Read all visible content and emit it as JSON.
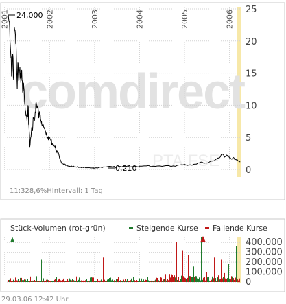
{
  "main_chart": {
    "watermark_brand": "comdirect",
    "watermark_symbol": "PTA.FSE",
    "footer_text": "11:328,6%HIntervall: 1 Tag",
    "label_start": "24,000",
    "label_low": "0,210",
    "highlight_color": "#f7e8a8"
  },
  "volume_chart": {
    "title": "Stück-Volumen (rot-grün)",
    "legend_up": "Steigende Kurse",
    "legend_down": "Fallende Kurse",
    "up_color": "#1f7a2c",
    "down_color": "#c01818"
  },
  "footer": {
    "timestamp": "29.03.06   12:42 Uhr"
  },
  "chart_data": [
    {
      "type": "line",
      "title": "",
      "xlabel": "",
      "ylabel": "",
      "x_tick_labels": [
        "2001",
        "2002",
        "2003",
        "2004",
        "2005",
        "2006"
      ],
      "y_tick_labels": [
        "0",
        "5",
        "10",
        "15",
        "20",
        "25"
      ],
      "ylim": [
        0,
        25
      ],
      "xlim": [
        2001.05,
        2006.25
      ],
      "grid": true,
      "series": [
        {
          "x": [
            2001.08,
            2001.1,
            2001.12,
            2001.14,
            2001.16,
            2001.18,
            2001.2,
            2001.22,
            2001.24,
            2001.26,
            2001.28,
            2001.3,
            2001.32,
            2001.34,
            2001.36,
            2001.38,
            2001.4,
            2001.42,
            2001.44,
            2001.46,
            2001.48,
            2001.5,
            2001.52,
            2001.54,
            2001.56,
            2001.58,
            2001.6,
            2001.62,
            2001.64,
            2001.66,
            2001.68,
            2001.7,
            2001.72,
            2001.74,
            2001.76,
            2001.78,
            2001.8,
            2001.82,
            2001.84,
            2001.86,
            2001.88,
            2001.9,
            2001.92,
            2001.94,
            2001.96,
            2001.98,
            2002.0,
            2002.03,
            2002.06,
            2002.09,
            2002.12,
            2002.15,
            2002.18,
            2002.21,
            2002.24,
            2002.28,
            2002.32,
            2002.36,
            2002.4,
            2002.45,
            2002.5,
            2002.55,
            2002.6,
            2002.65,
            2002.7,
            2002.75,
            2002.8,
            2002.85,
            2002.9,
            2002.95,
            2003.0,
            2003.1,
            2003.2,
            2003.3,
            2003.4,
            2003.5,
            2003.6,
            2003.7,
            2003.8,
            2003.9,
            2004.0,
            2004.15,
            2004.3,
            2004.45,
            2004.6,
            2004.75,
            2004.9,
            2005.0,
            2005.1,
            2005.2,
            2005.3,
            2005.4,
            2005.5,
            2005.6,
            2005.7,
            2005.75,
            2005.8,
            2005.85,
            2005.9,
            2005.95,
            2006.0,
            2006.05,
            2006.1,
            2006.15,
            2006.2,
            2006.24
          ],
          "y": [
            24.0,
            23.0,
            20.0,
            17.5,
            14.5,
            18.0,
            14.0,
            22.0,
            21.0,
            18.0,
            12.5,
            16.5,
            14.0,
            16.0,
            13.5,
            15.5,
            12.0,
            13.5,
            11.0,
            9.0,
            8.5,
            7.5,
            10.0,
            7.0,
            3.5,
            5.0,
            6.5,
            6.0,
            8.0,
            7.5,
            9.0,
            10.5,
            9.5,
            10.0,
            8.0,
            9.0,
            7.5,
            7.5,
            7.0,
            7.0,
            6.5,
            6.0,
            5.5,
            5.2,
            5.0,
            4.8,
            5.0,
            4.5,
            4.0,
            3.8,
            3.5,
            3.0,
            2.6,
            2.2,
            1.5,
            1.0,
            0.8,
            0.6,
            0.55,
            0.5,
            0.45,
            0.4,
            0.35,
            0.3,
            0.3,
            0.28,
            0.25,
            0.25,
            0.22,
            0.21,
            0.21,
            0.3,
            0.4,
            0.45,
            0.4,
            0.35,
            0.4,
            0.45,
            0.4,
            0.45,
            0.5,
            0.55,
            0.5,
            0.55,
            0.6,
            0.55,
            0.7,
            0.8,
            0.7,
            0.8,
            1.0,
            1.1,
            1.0,
            1.3,
            1.6,
            1.8,
            2.0,
            2.4,
            2.0,
            2.2,
            1.8,
            1.6,
            1.8,
            1.5,
            1.3,
            1.2
          ]
        }
      ]
    },
    {
      "type": "bar",
      "title": "Stück-Volumen (rot-grün)",
      "y_tick_labels": [
        "0",
        "100.000",
        "200.000",
        "300.000",
        "400.000"
      ],
      "ylim": [
        0,
        450000
      ],
      "xlim": [
        2001.05,
        2006.25
      ],
      "series": [
        {
          "name": "Steigende Kurse",
          "color": "#1f7a2c"
        },
        {
          "name": "Fallende Kurse",
          "color": "#c01818"
        }
      ]
    }
  ]
}
